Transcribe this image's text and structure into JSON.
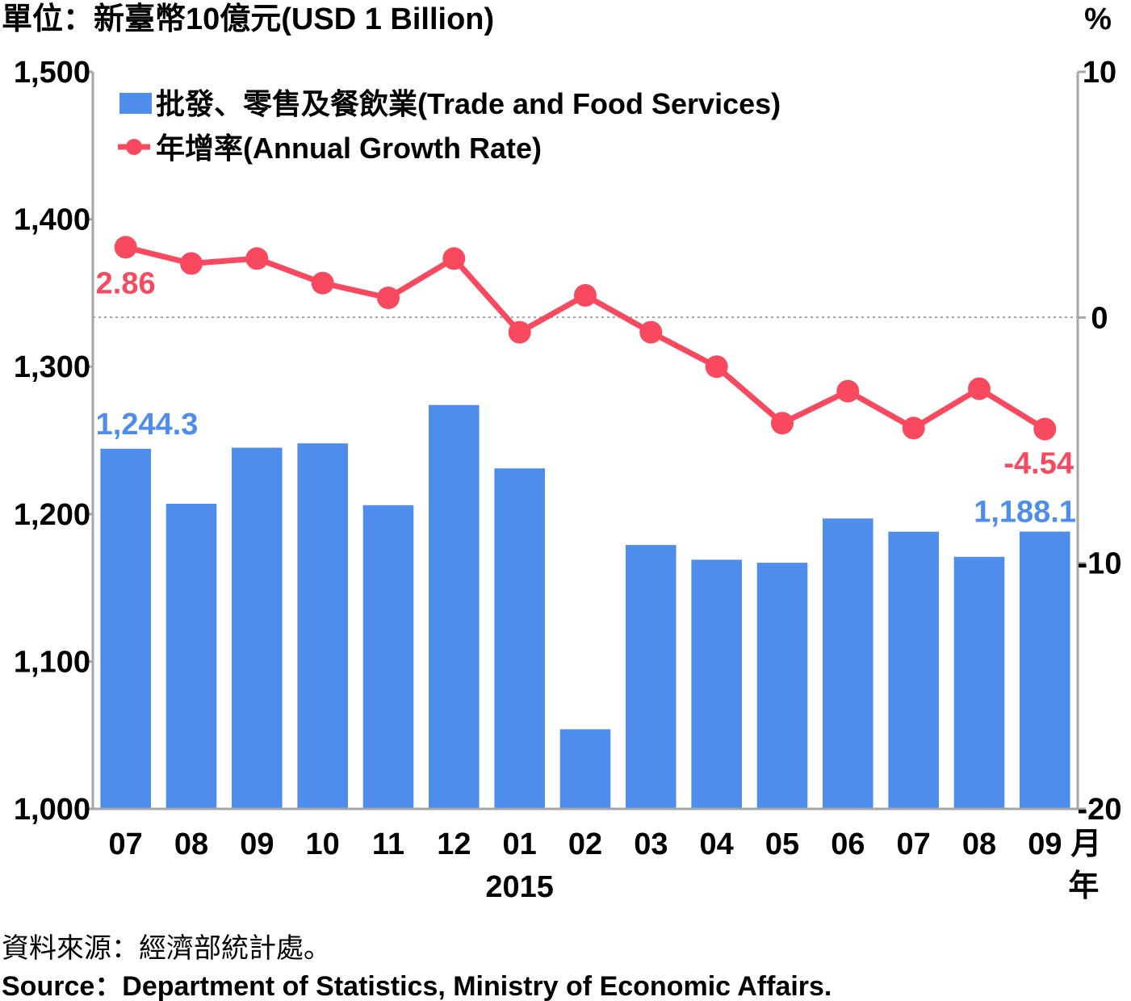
{
  "header": {
    "unit_label": "單位：新臺幣10億元(USD 1 Billion)",
    "right_unit": "%"
  },
  "legend": {
    "bar_label": "批發、零售及餐飲業(Trade and Food Services)",
    "line_label": "年增率(Annual Growth Rate)"
  },
  "footer": {
    "source_zh": "資料來源：經濟部統計處。",
    "source_en": "Source：Department of Statistics, Ministry of Economic Affairs."
  },
  "colors": {
    "bar": "#4f8ded",
    "line": "#f9495f",
    "axis": "#a6a6a6",
    "text": "#000000"
  },
  "chart_data": {
    "type": "bar",
    "categories": [
      "07",
      "08",
      "09",
      "10",
      "11",
      "12",
      "01",
      "02",
      "03",
      "04",
      "05",
      "06",
      "07",
      "08",
      "09"
    ],
    "x_unit_month": "月",
    "x_unit_year": "年",
    "year_label": "2015",
    "y_left": {
      "ylim": [
        1000,
        1500
      ],
      "ticks": [
        "1,000",
        "1,100",
        "1,200",
        "1,300",
        "1,400",
        "1,500"
      ]
    },
    "y_right": {
      "ylim": [
        -20,
        10
      ],
      "ticks": [
        "-20",
        "-10",
        "0",
        "10"
      ]
    },
    "series": [
      {
        "name": "批發、零售及餐飲業(Trade and Food Services)",
        "type": "bar",
        "axis": "left",
        "values": [
          1244.3,
          1207,
          1245,
          1248,
          1206,
          1274,
          1231,
          1054,
          1179,
          1169,
          1167,
          1197,
          1188,
          1171,
          1188.1
        ]
      },
      {
        "name": "年增率(Annual Growth Rate)",
        "type": "line",
        "axis": "right",
        "values": [
          2.86,
          2.2,
          2.4,
          1.4,
          0.8,
          2.4,
          -0.6,
          0.9,
          -0.6,
          -2.0,
          -4.3,
          -3.0,
          -4.5,
          -2.9,
          -4.54
        ]
      }
    ],
    "data_labels": {
      "bar_first": "1,244.3",
      "bar_last": "1,188.1",
      "line_first": "2.86",
      "line_last": "-4.54"
    },
    "zero_reference_line": true,
    "legend_position": "top-left"
  }
}
